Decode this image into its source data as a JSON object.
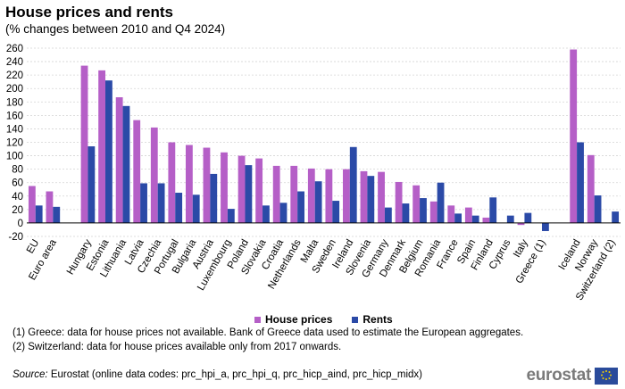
{
  "header": {
    "title": "House prices and rents",
    "subtitle": "(% changes between 2010 and Q4 2024)"
  },
  "colors": {
    "house_prices": "#b55fc7",
    "rents": "#2b4aa7",
    "grid": "#d4d4d4",
    "axis": "#000000"
  },
  "chart_data": {
    "type": "bar",
    "title": "House prices and rents",
    "subtitle": "(% changes between 2010 and Q4 2024)",
    "xlabel": "",
    "ylabel": "",
    "ylim": [
      -20,
      260
    ],
    "yticks": [
      -20,
      0,
      20,
      40,
      60,
      80,
      100,
      120,
      140,
      160,
      180,
      200,
      220,
      240,
      260
    ],
    "grid": true,
    "categories": [
      "EU",
      "Euro area",
      "",
      "Hungary",
      "Estonia",
      "Lithuania",
      "Latvia",
      "Czechia",
      "Portugal",
      "Bulgaria",
      "Austria",
      "Luxembourg",
      "Poland",
      "Slovakia",
      "Croatia",
      "Netherlands",
      "Malta",
      "Sweden",
      "Ireland",
      "Slovenia",
      "Germany",
      "Denmark",
      "Belgium",
      "Romania",
      "France",
      "Spain",
      "Finland",
      "Cyprus",
      "Italy",
      "Greece (1)",
      "",
      "Iceland",
      "Norway",
      "Switzerland (2)"
    ],
    "series": [
      {
        "name": "House prices",
        "values": [
          55,
          47,
          null,
          234,
          227,
          187,
          153,
          142,
          120,
          116,
          112,
          105,
          100,
          96,
          85,
          85,
          81,
          80,
          80,
          77,
          76,
          61,
          56,
          32,
          26,
          23,
          8,
          null,
          -3,
          null,
          null,
          258,
          101,
          null
        ]
      },
      {
        "name": "Rents",
        "values": [
          26,
          24,
          null,
          114,
          212,
          174,
          59,
          59,
          45,
          42,
          73,
          21,
          86,
          26,
          30,
          47,
          62,
          33,
          113,
          70,
          23,
          29,
          37,
          60,
          14,
          11,
          38,
          11,
          15,
          -12,
          null,
          120,
          41,
          17
        ]
      }
    ],
    "legend_position": "bottom-center"
  },
  "legend": {
    "house_prices": "House prices",
    "rents": "Rents"
  },
  "notes": [
    "(1) Greece: data for house prices not available. Bank of Greece data used to estimate the European aggregates.",
    "(2) Switzerland: data for house prices available only from 2017 onwards."
  ],
  "source": {
    "label": "Source:",
    "text": " Eurostat (online data codes: prc_hpi_a, prc_hpi_q, prc_hicp_aind, prc_hicp_midx)"
  },
  "logo": {
    "text": "eurostat"
  }
}
